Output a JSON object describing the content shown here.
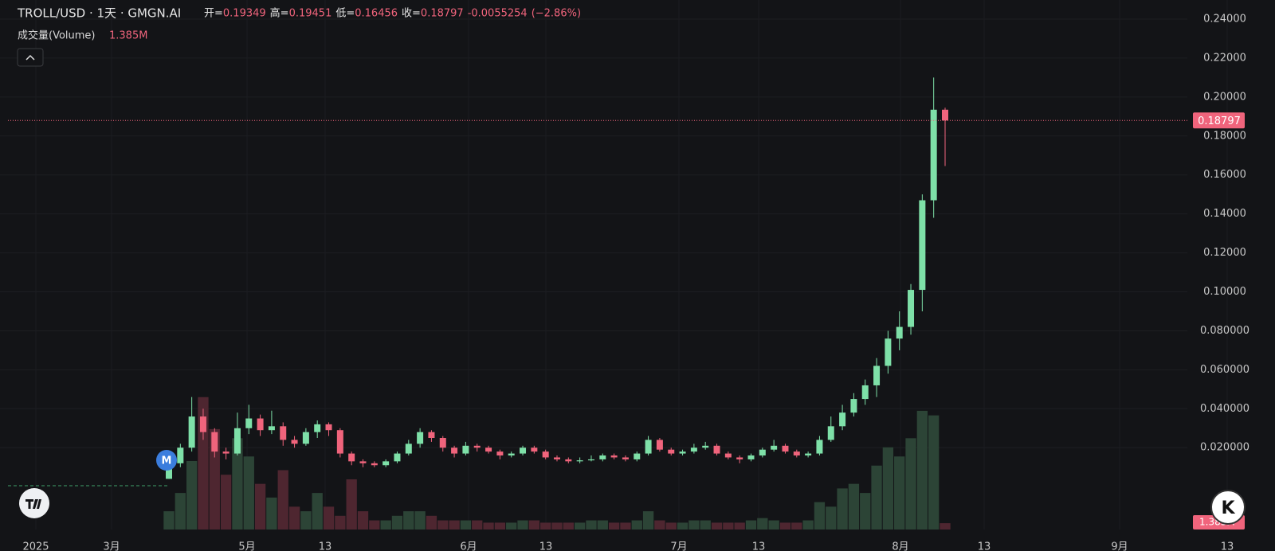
{
  "chart_data": {
    "type": "candlestick",
    "header": {
      "symbol": "TROLL/USD · 1天 · GMGN.AI",
      "open_label": "开=",
      "high_label": "高=",
      "low_label": "低=",
      "close_label": "收=",
      "change": -0.0055254,
      "change_pct": "(−2.86%)",
      "volume_title": "成交量(Volume)",
      "volume_value": "1.385M",
      "marker": "M",
      "brand": "K"
    },
    "x_labels": [
      "2025",
      "3月",
      "5月",
      "13",
      "6月",
      "13",
      "7月",
      "13",
      "8月",
      "13",
      "9月",
      "13"
    ],
    "open": [
      0.004,
      0.012,
      0.02,
      0.036,
      0.028,
      0.018,
      0.017,
      0.03,
      0.035,
      0.029,
      0.031,
      0.024,
      0.022,
      0.028,
      0.032,
      0.029,
      0.017,
      0.013,
      0.012,
      0.011,
      0.013,
      0.017,
      0.022,
      0.028,
      0.025,
      0.02,
      0.017,
      0.021,
      0.02,
      0.018,
      0.016,
      0.017,
      0.02,
      0.018,
      0.015,
      0.014,
      0.013,
      0.0135,
      0.014,
      0.016,
      0.015,
      0.014,
      0.017,
      0.024,
      0.019,
      0.017,
      0.018,
      0.02,
      0.021,
      0.017,
      0.015,
      0.014,
      0.016,
      0.019,
      0.021,
      0.018,
      0.016,
      0.017,
      0.024,
      0.031,
      0.038,
      0.045,
      0.052,
      0.062,
      0.076,
      0.082,
      0.101,
      0.147,
      0.19349
    ],
    "high": [
      0.014,
      0.022,
      0.046,
      0.04,
      0.03,
      0.02,
      0.038,
      0.042,
      0.037,
      0.039,
      0.033,
      0.026,
      0.03,
      0.034,
      0.033,
      0.03,
      0.018,
      0.014,
      0.013,
      0.014,
      0.018,
      0.024,
      0.03,
      0.029,
      0.026,
      0.021,
      0.023,
      0.022,
      0.021,
      0.019,
      0.018,
      0.021,
      0.021,
      0.019,
      0.016,
      0.015,
      0.015,
      0.016,
      0.017,
      0.017,
      0.016,
      0.018,
      0.026,
      0.025,
      0.02,
      0.019,
      0.022,
      0.023,
      0.022,
      0.018,
      0.016,
      0.017,
      0.02,
      0.024,
      0.022,
      0.019,
      0.018,
      0.026,
      0.036,
      0.042,
      0.048,
      0.055,
      0.066,
      0.08,
      0.09,
      0.104,
      0.15,
      0.21,
      0.19451
    ],
    "low": [
      0.004,
      0.01,
      0.018,
      0.024,
      0.015,
      0.014,
      0.016,
      0.027,
      0.026,
      0.027,
      0.021,
      0.02,
      0.021,
      0.025,
      0.026,
      0.015,
      0.011,
      0.01,
      0.01,
      0.01,
      0.012,
      0.016,
      0.02,
      0.023,
      0.018,
      0.015,
      0.016,
      0.018,
      0.017,
      0.014,
      0.015,
      0.016,
      0.017,
      0.014,
      0.013,
      0.012,
      0.012,
      0.013,
      0.013,
      0.014,
      0.013,
      0.013,
      0.016,
      0.018,
      0.016,
      0.016,
      0.017,
      0.019,
      0.016,
      0.014,
      0.012,
      0.013,
      0.015,
      0.018,
      0.017,
      0.015,
      0.015,
      0.016,
      0.023,
      0.029,
      0.036,
      0.042,
      0.046,
      0.058,
      0.07,
      0.078,
      0.09,
      0.138,
      0.16456
    ],
    "close": [
      0.012,
      0.02,
      0.036,
      0.028,
      0.018,
      0.017,
      0.03,
      0.035,
      0.029,
      0.031,
      0.024,
      0.022,
      0.028,
      0.032,
      0.029,
      0.017,
      0.013,
      0.012,
      0.011,
      0.013,
      0.017,
      0.022,
      0.028,
      0.025,
      0.02,
      0.017,
      0.021,
      0.02,
      0.018,
      0.016,
      0.017,
      0.02,
      0.018,
      0.015,
      0.014,
      0.013,
      0.0135,
      0.014,
      0.016,
      0.015,
      0.014,
      0.017,
      0.024,
      0.019,
      0.017,
      0.018,
      0.02,
      0.021,
      0.017,
      0.015,
      0.014,
      0.016,
      0.019,
      0.021,
      0.018,
      0.016,
      0.017,
      0.024,
      0.031,
      0.038,
      0.045,
      0.052,
      0.062,
      0.076,
      0.082,
      0.101,
      0.147,
      0.19349,
      0.18797
    ],
    "volume": [
      4,
      8,
      15,
      29,
      22,
      12,
      20,
      16,
      10,
      7,
      13,
      5,
      4,
      8,
      5,
      3,
      11,
      4,
      2,
      2,
      3,
      4,
      4,
      3,
      2,
      2,
      2,
      2,
      1.5,
      1.5,
      1.5,
      2,
      2,
      1.5,
      1.5,
      1.5,
      1.5,
      2,
      2,
      1.5,
      1.5,
      2,
      4,
      2,
      1.5,
      1.5,
      2,
      2,
      1.5,
      1.5,
      1.5,
      2,
      2.5,
      2,
      1.5,
      1.5,
      2,
      6,
      5,
      9,
      10,
      8,
      14,
      18,
      16,
      20,
      26,
      25,
      1.385
    ],
    "up_color": "#7ee0a8",
    "down_color": "#f0647c",
    "volume_up_color": "#2c4436",
    "volume_down_color": "#4e2630",
    "ylim": [
      -0.022,
      0.2498
    ],
    "yticks": [
      {
        "value": 0.02,
        "label": "0.020000"
      },
      {
        "value": 0.04,
        "label": "0.040000"
      },
      {
        "value": 0.06,
        "label": "0.060000"
      },
      {
        "value": 0.08,
        "label": "0.080000"
      },
      {
        "value": 0.1,
        "label": "0.10000"
      },
      {
        "value": 0.12,
        "label": "0.12000"
      },
      {
        "value": 0.14,
        "label": "0.14000"
      },
      {
        "value": 0.16,
        "label": "0.16000"
      },
      {
        "value": 0.18,
        "label": "0.18000"
      },
      {
        "value": 0.2,
        "label": "0.20000"
      },
      {
        "value": 0.22,
        "label": "0.22000"
      },
      {
        "value": 0.24,
        "label": "0.24000"
      }
    ],
    "vlim": [
      0,
      30
    ],
    "grid": true
  }
}
